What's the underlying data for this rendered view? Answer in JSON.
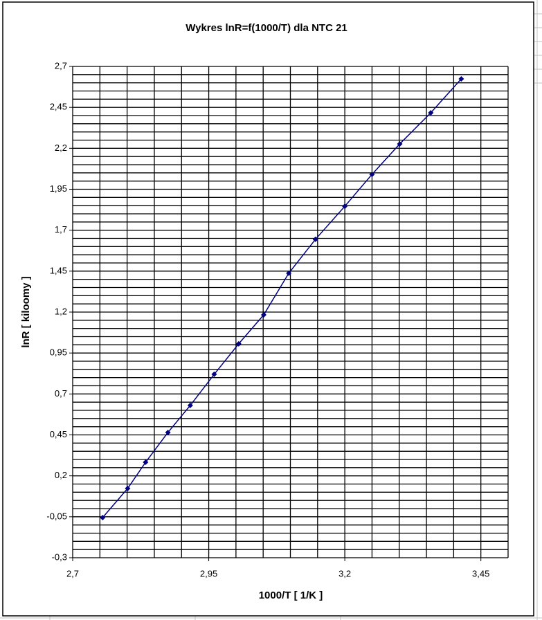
{
  "chart_data": {
    "type": "line",
    "title": "Wykres lnR=f(1000/T) dla NTC 21",
    "xlabel": "1000/T  [ 1/K ]",
    "ylabel": "lnR [ kiloomy ]",
    "x": [
      2.755,
      2.801,
      2.834,
      2.875,
      2.916,
      2.96,
      3.005,
      3.051,
      3.097,
      3.146,
      3.2,
      3.25,
      3.301,
      3.358,
      3.414
    ],
    "series": [
      {
        "name": "lnR",
        "color": "#000080",
        "values": [
          -0.055,
          0.123,
          0.283,
          0.465,
          0.63,
          0.82,
          1.006,
          1.183,
          1.437,
          1.644,
          1.846,
          2.041,
          2.227,
          2.417,
          2.624
        ]
      }
    ],
    "xlim": [
      2.7,
      3.5
    ],
    "ylim": [
      -0.3,
      2.7
    ],
    "xticks": [
      {
        "value": 2.7,
        "label": "2,7"
      },
      {
        "value": 2.95,
        "label": "2,95"
      },
      {
        "value": 3.2,
        "label": "3,2"
      },
      {
        "value": 3.45,
        "label": "3,45"
      }
    ],
    "yticks": [
      {
        "value": -0.3,
        "label": "-0,3"
      },
      {
        "value": -0.05,
        "label": "-0,05"
      },
      {
        "value": 0.2,
        "label": "0,2"
      },
      {
        "value": 0.45,
        "label": "0,45"
      },
      {
        "value": 0.7,
        "label": "0,7"
      },
      {
        "value": 0.95,
        "label": "0,95"
      },
      {
        "value": 1.2,
        "label": "1,2"
      },
      {
        "value": 1.45,
        "label": "1,45"
      },
      {
        "value": 1.7,
        "label": "1,7"
      },
      {
        "value": 1.95,
        "label": "1,95"
      },
      {
        "value": 2.2,
        "label": "2,2"
      },
      {
        "value": 2.45,
        "label": "2,45"
      },
      {
        "value": 2.7,
        "label": "2,7"
      }
    ],
    "xgrid": [
      2.7,
      2.75,
      2.8,
      2.85,
      2.9,
      2.95,
      3,
      3.05,
      3.1,
      3.15,
      3.2,
      3.25,
      3.3,
      3.35,
      3.4,
      3.45,
      3.5
    ],
    "ygrid": [
      -0.3,
      -0.25,
      -0.2,
      -0.15,
      -0.1,
      -0.05,
      0,
      0.05,
      0.1,
      0.15,
      0.2,
      0.25,
      0.3,
      0.35,
      0.4,
      0.45,
      0.5,
      0.55,
      0.6,
      0.65,
      0.7,
      0.75,
      0.8,
      0.85,
      0.9,
      0.95,
      1,
      1.05,
      1.1,
      1.15,
      1.2,
      1.25,
      1.3,
      1.35,
      1.4,
      1.45,
      1.5,
      1.55,
      1.6,
      1.65,
      1.7,
      1.75,
      1.8,
      1.85,
      1.9,
      1.95,
      2,
      2.05,
      2.1,
      2.15,
      2.2,
      2.25,
      2.3,
      2.35,
      2.4,
      2.45,
      2.5,
      2.55,
      2.6,
      2.65,
      2.7
    ],
    "grid": true
  }
}
